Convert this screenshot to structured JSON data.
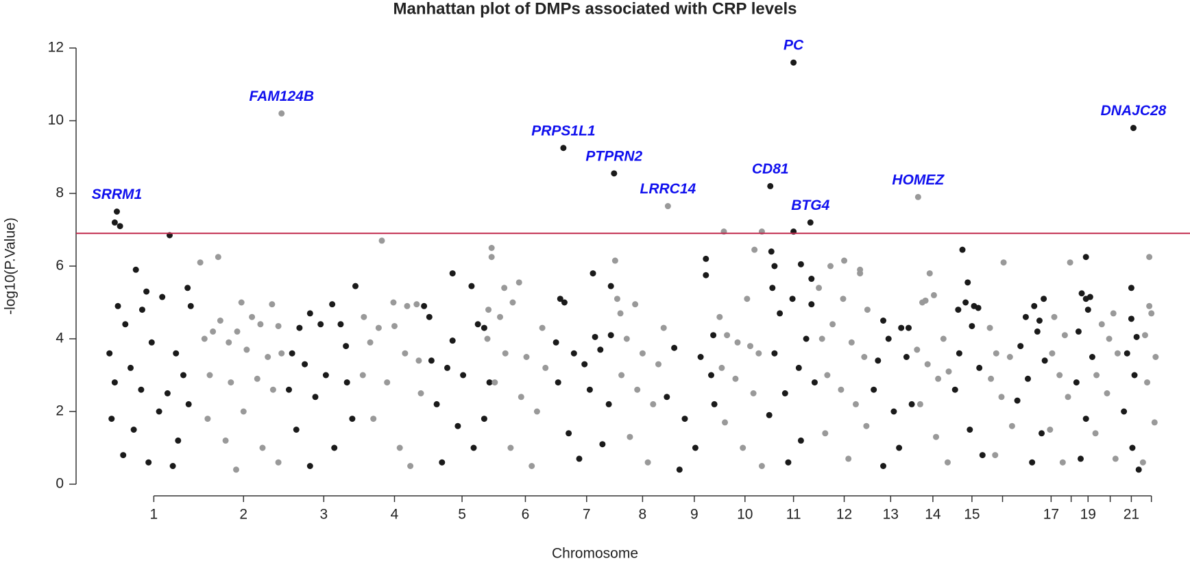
{
  "chart_data": {
    "type": "scatter",
    "title": "Manhattan plot of DMPs associated with CRP levels",
    "x_label": "Chromosome",
    "y_label": "-log10(P.Value)",
    "xlim": [
      0,
      100
    ],
    "ylim": [
      0,
      12
    ],
    "yticks": [
      0,
      2,
      4,
      6,
      8,
      10,
      12
    ],
    "xticks": [
      {
        "value": 4.7,
        "label": "1"
      },
      {
        "value": 13.2,
        "label": "2"
      },
      {
        "value": 20.8,
        "label": "3"
      },
      {
        "value": 27.5,
        "label": "4"
      },
      {
        "value": 33.9,
        "label": "5"
      },
      {
        "value": 39.9,
        "label": "6"
      },
      {
        "value": 45.7,
        "label": "7"
      },
      {
        "value": 51.0,
        "label": "8"
      },
      {
        "value": 55.9,
        "label": "9"
      },
      {
        "value": 60.7,
        "label": "10"
      },
      {
        "value": 65.3,
        "label": "11"
      },
      {
        "value": 70.1,
        "label": "12"
      },
      {
        "value": 74.5,
        "label": "13"
      },
      {
        "value": 78.5,
        "label": "14"
      },
      {
        "value": 82.2,
        "label": "15"
      },
      {
        "value": 85.1,
        "label": null
      },
      {
        "value": 89.7,
        "label": "17"
      },
      {
        "value": 91.6,
        "label": null
      },
      {
        "value": 93.2,
        "label": "19"
      },
      {
        "value": 95.3,
        "label": null
      },
      {
        "value": 97.3,
        "label": "21"
      },
      {
        "value": 99.2,
        "label": null
      }
    ],
    "threshold": 6.9,
    "threshold_color": "#c0264a",
    "series": [
      {
        "color": "#1a1a1a",
        "x": [
          1.0,
          1.5,
          6.2,
          3.0,
          4.0,
          5.5,
          1.3,
          3.6,
          2.0,
          7.9,
          8.2,
          4.5,
          0.5,
          6.8,
          2.5,
          7.5,
          1.0,
          3.5,
          6.0,
          0.7,
          2.8,
          5.2,
          7.0,
          1.8,
          4.2,
          6.5,
          8.0,
          19.5,
          21.6,
          20.5,
          23.8,
          22.4,
          18.5,
          17.8,
          19.0,
          21.0,
          22.9,
          17.5,
          20.0,
          23.0,
          18.2,
          21.8,
          19.5,
          23.5,
          33.0,
          34.8,
          30.3,
          30.8,
          35.4,
          36.0,
          33.0,
          31.0,
          32.5,
          34.0,
          36.5,
          31.5,
          33.5,
          35.0,
          32.0,
          36.0,
          46.3,
          48.0,
          43.2,
          43.6,
          46.5,
          48.0,
          42.8,
          44.5,
          45.5,
          47.0,
          43.0,
          46.0,
          47.8,
          44.0,
          45.0,
          47.2,
          57.0,
          57.0,
          57.7,
          54.0,
          56.5,
          57.5,
          53.3,
          55.0,
          56.0,
          54.5,
          57.8,
          65.3,
          63.2,
          63.5,
          63.3,
          66.0,
          67.0,
          65.2,
          67.0,
          64.0,
          66.5,
          63.5,
          65.8,
          67.3,
          64.5,
          63.0,
          66.0,
          64.8,
          73.8,
          75.5,
          76.2,
          74.3,
          73.3,
          76.0,
          74.8,
          72.9,
          75.3,
          76.5,
          73.8,
          81.3,
          81.8,
          82.4,
          81.6,
          82.8,
          80.9,
          82.2,
          81.0,
          82.9,
          80.6,
          82.0,
          83.2,
          88.1,
          89.0,
          87.3,
          88.6,
          88.4,
          86.8,
          89.1,
          87.5,
          86.5,
          88.8,
          87.9,
          93.0,
          92.6,
          93.0,
          93.4,
          93.2,
          92.3,
          93.6,
          92.1,
          93.0,
          92.5,
          97.3,
          97.3,
          97.8,
          96.9,
          97.6,
          96.6,
          97.4,
          98.0
        ],
        "values": [
          7.2,
          7.1,
          6.85,
          5.9,
          5.3,
          5.15,
          4.9,
          4.8,
          4.4,
          5.4,
          4.9,
          3.9,
          3.6,
          3.6,
          3.2,
          3.0,
          2.8,
          2.6,
          2.5,
          1.8,
          1.5,
          2.0,
          1.2,
          0.8,
          0.6,
          0.5,
          2.2,
          4.7,
          4.95,
          4.4,
          5.45,
          4.4,
          4.3,
          3.6,
          3.3,
          3.0,
          3.8,
          2.6,
          2.4,
          2.8,
          1.5,
          1.0,
          0.5,
          1.8,
          5.8,
          5.45,
          4.9,
          4.6,
          4.4,
          4.3,
          3.95,
          3.4,
          3.2,
          3.0,
          2.8,
          2.2,
          1.6,
          1.0,
          0.6,
          1.8,
          5.8,
          5.45,
          5.1,
          5.0,
          4.05,
          4.1,
          3.9,
          3.6,
          3.3,
          3.7,
          2.8,
          2.6,
          2.2,
          1.4,
          0.7,
          1.1,
          6.2,
          5.75,
          4.1,
          3.75,
          3.5,
          3.0,
          2.4,
          1.8,
          1.0,
          0.4,
          2.2,
          6.95,
          6.4,
          6.0,
          5.4,
          6.05,
          5.65,
          5.1,
          4.95,
          4.7,
          4.0,
          3.6,
          3.2,
          2.8,
          2.5,
          1.9,
          1.2,
          0.6,
          4.5,
          4.3,
          4.3,
          4.0,
          3.4,
          3.5,
          2.0,
          2.6,
          1.0,
          2.2,
          0.5,
          6.45,
          5.55,
          4.9,
          5.0,
          4.85,
          4.8,
          4.35,
          3.6,
          3.2,
          2.6,
          1.5,
          0.8,
          4.9,
          5.1,
          4.6,
          4.5,
          4.2,
          3.8,
          3.4,
          2.9,
          2.3,
          1.4,
          0.6,
          6.25,
          5.25,
          5.1,
          5.15,
          4.8,
          4.2,
          3.5,
          2.8,
          1.8,
          0.7,
          5.4,
          4.55,
          4.05,
          3.6,
          3.0,
          2.0,
          1.0,
          0.4
        ]
      },
      {
        "color": "#999999",
        "x": [
          9.1,
          10.8,
          15.9,
          13.0,
          14.0,
          11.0,
          10.3,
          12.6,
          14.8,
          16.5,
          9.5,
          11.8,
          13.5,
          15.5,
          16.8,
          10.0,
          12.0,
          14.5,
          16.0,
          9.8,
          11.5,
          13.2,
          15.0,
          16.5,
          12.5,
          26.3,
          27.4,
          28.7,
          29.6,
          24.6,
          26.0,
          27.5,
          25.2,
          28.5,
          29.8,
          24.5,
          26.8,
          30.0,
          25.5,
          28.0,
          29.0,
          36.7,
          36.7,
          39.3,
          37.9,
          38.7,
          36.4,
          37.5,
          41.5,
          36.3,
          38.0,
          40.0,
          41.8,
          37.0,
          39.5,
          41.0,
          38.5,
          40.5,
          48.4,
          48.6,
          50.3,
          48.9,
          53.0,
          49.5,
          51.0,
          52.5,
          49.0,
          50.5,
          52.0,
          49.8,
          51.5,
          58.7,
          61.6,
          62.3,
          60.9,
          58.3,
          59.0,
          60.0,
          61.2,
          62.0,
          58.5,
          59.8,
          61.5,
          58.8,
          60.5,
          62.3,
          68.8,
          70.1,
          71.6,
          71.6,
          67.7,
          70.0,
          72.3,
          69.0,
          68.0,
          70.8,
          72.0,
          68.5,
          69.8,
          71.2,
          68.3,
          70.5,
          72.2,
          78.2,
          77.8,
          78.6,
          77.5,
          79.5,
          77.0,
          78.0,
          79.0,
          80.0,
          77.3,
          78.8,
          79.9,
          85.2,
          83.9,
          84.5,
          85.8,
          84.0,
          85.0,
          86.0,
          84.4,
          90.0,
          91.5,
          91.0,
          89.8,
          90.5,
          91.3,
          89.6,
          90.8,
          95.6,
          94.5,
          95.2,
          96.0,
          94.0,
          95.0,
          93.9,
          95.8,
          99.0,
          99.0,
          99.2,
          98.6,
          99.6,
          98.8,
          99.5,
          98.4
        ],
        "values": [
          6.1,
          6.25,
          4.95,
          5.0,
          4.6,
          4.5,
          4.2,
          4.2,
          4.4,
          4.35,
          4.0,
          3.9,
          3.7,
          3.5,
          3.6,
          3.0,
          2.8,
          2.9,
          2.6,
          1.8,
          1.2,
          2.0,
          1.0,
          0.6,
          0.4,
          6.7,
          5.0,
          4.9,
          4.95,
          4.6,
          4.3,
          4.35,
          3.9,
          3.6,
          3.4,
          3.0,
          2.8,
          2.5,
          1.8,
          1.0,
          0.5,
          6.5,
          6.25,
          5.55,
          5.4,
          5.0,
          4.8,
          4.6,
          4.3,
          4.0,
          3.6,
          3.5,
          3.2,
          2.8,
          2.4,
          2.0,
          1.0,
          0.5,
          6.15,
          5.1,
          4.95,
          4.7,
          4.3,
          4.0,
          3.6,
          3.3,
          3.0,
          2.6,
          2.2,
          1.3,
          0.6,
          6.95,
          6.45,
          6.95,
          5.1,
          4.6,
          4.1,
          3.9,
          3.8,
          3.6,
          3.2,
          2.9,
          2.5,
          1.7,
          1.0,
          0.5,
          6.0,
          6.15,
          5.9,
          5.8,
          5.4,
          5.1,
          4.8,
          4.4,
          4.0,
          3.9,
          3.5,
          3.0,
          2.6,
          2.2,
          1.4,
          0.7,
          1.6,
          5.8,
          5.05,
          5.2,
          5.0,
          4.0,
          3.7,
          3.3,
          2.9,
          3.1,
          2.2,
          1.3,
          0.6,
          6.1,
          4.3,
          3.6,
          3.5,
          2.9,
          2.4,
          1.6,
          0.8,
          4.6,
          6.1,
          4.1,
          3.6,
          3.0,
          2.4,
          1.5,
          0.6,
          4.7,
          4.4,
          4.0,
          3.6,
          3.0,
          2.5,
          1.4,
          0.7,
          6.25,
          4.9,
          4.7,
          4.1,
          3.5,
          2.8,
          1.7,
          0.6
        ]
      }
    ],
    "annotations": [
      {
        "label": "SRRM1",
        "x": 1.2,
        "y": 7.5,
        "color": "#1a1a1a"
      },
      {
        "label": "FAM124B",
        "x": 16.8,
        "y": 10.2,
        "color": "#999999"
      },
      {
        "label": "PRPS1L1",
        "x": 43.5,
        "y": 9.25,
        "color": "#1a1a1a"
      },
      {
        "label": "PTPRN2",
        "x": 48.3,
        "y": 8.55,
        "color": "#1a1a1a"
      },
      {
        "label": "LRRC14",
        "x": 53.4,
        "y": 7.65,
        "color": "#999999"
      },
      {
        "label": "CD81",
        "x": 63.1,
        "y": 8.2,
        "color": "#1a1a1a"
      },
      {
        "label": "PC",
        "x": 65.3,
        "y": 11.6,
        "color": "#1a1a1a"
      },
      {
        "label": "BTG4",
        "x": 66.9,
        "y": 7.2,
        "color": "#1a1a1a"
      },
      {
        "label": "HOMEZ",
        "x": 77.1,
        "y": 7.9,
        "color": "#999999"
      },
      {
        "label": "DNAJC28",
        "x": 97.5,
        "y": 9.8,
        "color": "#1a1a1a"
      }
    ],
    "annotation_color": "#1010ee"
  }
}
